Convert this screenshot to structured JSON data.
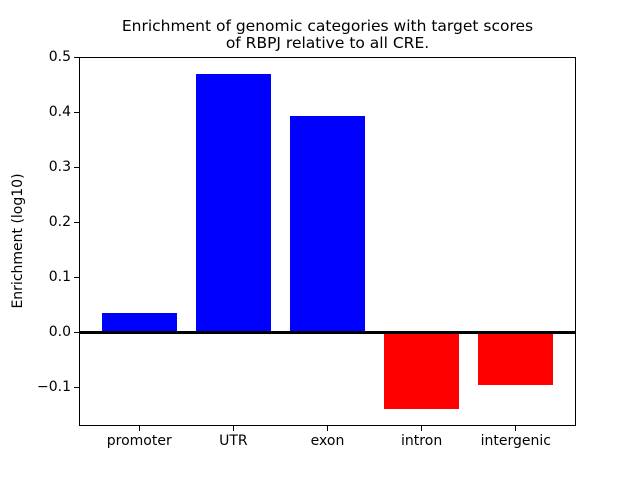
{
  "figure": {
    "background": "#ffffff"
  },
  "chart_data": {
    "type": "bar",
    "title": "Enrichment of genomic categories with target scores\nof RBPJ relative to all CRE.",
    "xlabel": "",
    "ylabel": "Enrichment (log10)",
    "categories": [
      "promoter",
      "UTR",
      "exon",
      "intron",
      "intergenic"
    ],
    "values": [
      0.035,
      0.47,
      0.393,
      -0.14,
      -0.096
    ],
    "bar_colors": [
      "#0000ff",
      "#0000ff",
      "#0000ff",
      "#ff0000",
      "#ff0000"
    ],
    "positive_color": "#0000ff",
    "negative_color": "#ff0000",
    "baseline_value": 0,
    "baseline_color": "#000000",
    "ytick_values": [
      0.5,
      0.4,
      0.3,
      0.2,
      0.1,
      0.0,
      -0.1
    ],
    "ytick_labels": [
      "0.5",
      "0.4",
      "0.3",
      "0.2",
      "0.1",
      "0.0",
      "−0.1"
    ],
    "ylim": [
      -0.17,
      0.5
    ],
    "xlim": [
      -0.64,
      4.64
    ],
    "bar_width": 0.8,
    "grid": false,
    "legend": "none"
  }
}
